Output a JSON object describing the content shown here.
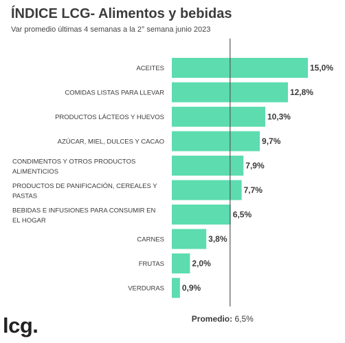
{
  "header": {
    "title": "ÍNDICE LCG- Alimentos y bebidas",
    "subtitle": "Var promedio últimas 4 semanas a la 2° semana junio 2023"
  },
  "brand": {
    "logo_text": "lcg."
  },
  "colors": {
    "bar": "#5ddcb0",
    "average_line": "#555555"
  },
  "chart_data": {
    "type": "bar",
    "orientation": "horizontal",
    "title": "ÍNDICE LCG- Alimentos y bebidas",
    "subtitle": "Var promedio últimas 4 semanas a la 2° semana junio 2023",
    "categories": [
      [
        "ACEITES"
      ],
      [
        "COMIDAS LISTAS PARA LLEVAR"
      ],
      [
        "PRODUCTOS LÁCTEOS Y HUEVOS"
      ],
      [
        "AZÚCAR, MIEL, DULCES Y CACAO"
      ],
      [
        "CONDIMENTOS Y OTROS PRODUCTOS",
        "ALIMENTICIOS"
      ],
      [
        "PRODUCTOS DE PANIFICACIÓN, CEREALES Y",
        "PASTAS"
      ],
      [
        "BEBIDAS E INFUSIONES PARA CONSUMIR EN",
        "EL HOGAR"
      ],
      [
        "CARNES"
      ],
      [
        "FRUTAS"
      ],
      [
        "VERDURAS"
      ]
    ],
    "values": [
      15.0,
      12.8,
      10.3,
      9.7,
      7.9,
      7.7,
      6.5,
      3.8,
      2.0,
      0.9
    ],
    "value_labels": [
      "15,0%",
      "12,8%",
      "10,3%",
      "9,7%",
      "7,9%",
      "7,7%",
      "6,5%",
      "3,8%",
      "2,0%",
      "0,9%"
    ],
    "unit": "%",
    "average": {
      "value": 6.5,
      "label": "Promedio:",
      "value_label": "6,5%"
    },
    "grid": false,
    "legend": "none"
  }
}
